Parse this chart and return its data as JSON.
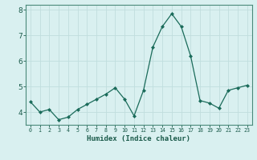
{
  "x": [
    0,
    1,
    2,
    3,
    4,
    5,
    6,
    7,
    8,
    9,
    10,
    11,
    12,
    13,
    14,
    15,
    16,
    17,
    18,
    19,
    20,
    21,
    22,
    23
  ],
  "y": [
    4.4,
    4.0,
    4.1,
    3.7,
    3.8,
    4.1,
    4.3,
    4.5,
    4.7,
    4.95,
    4.5,
    3.85,
    4.85,
    6.55,
    7.35,
    7.85,
    7.35,
    6.2,
    4.45,
    4.35,
    4.15,
    4.85,
    4.95,
    5.05
  ],
  "xlabel": "Humidex (Indice chaleur)",
  "ylim": [
    3.5,
    8.2
  ],
  "xlim": [
    -0.5,
    23.5
  ],
  "yticks": [
    4,
    5,
    6,
    7,
    8
  ],
  "xtick_labels": [
    "0",
    "1",
    "2",
    "3",
    "4",
    "5",
    "6",
    "7",
    "8",
    "9",
    "10",
    "11",
    "12",
    "13",
    "14",
    "15",
    "16",
    "17",
    "18",
    "19",
    "20",
    "21",
    "22",
    "23"
  ],
  "line_color": "#1a6b5a",
  "marker_color": "#1a6b5a",
  "bg_color": "#d9f0f0",
  "grid_color": "#c0dede",
  "axis_color": "#4a8a7a",
  "tick_color": "#1a5a4a",
  "label_color": "#1a5a4a"
}
